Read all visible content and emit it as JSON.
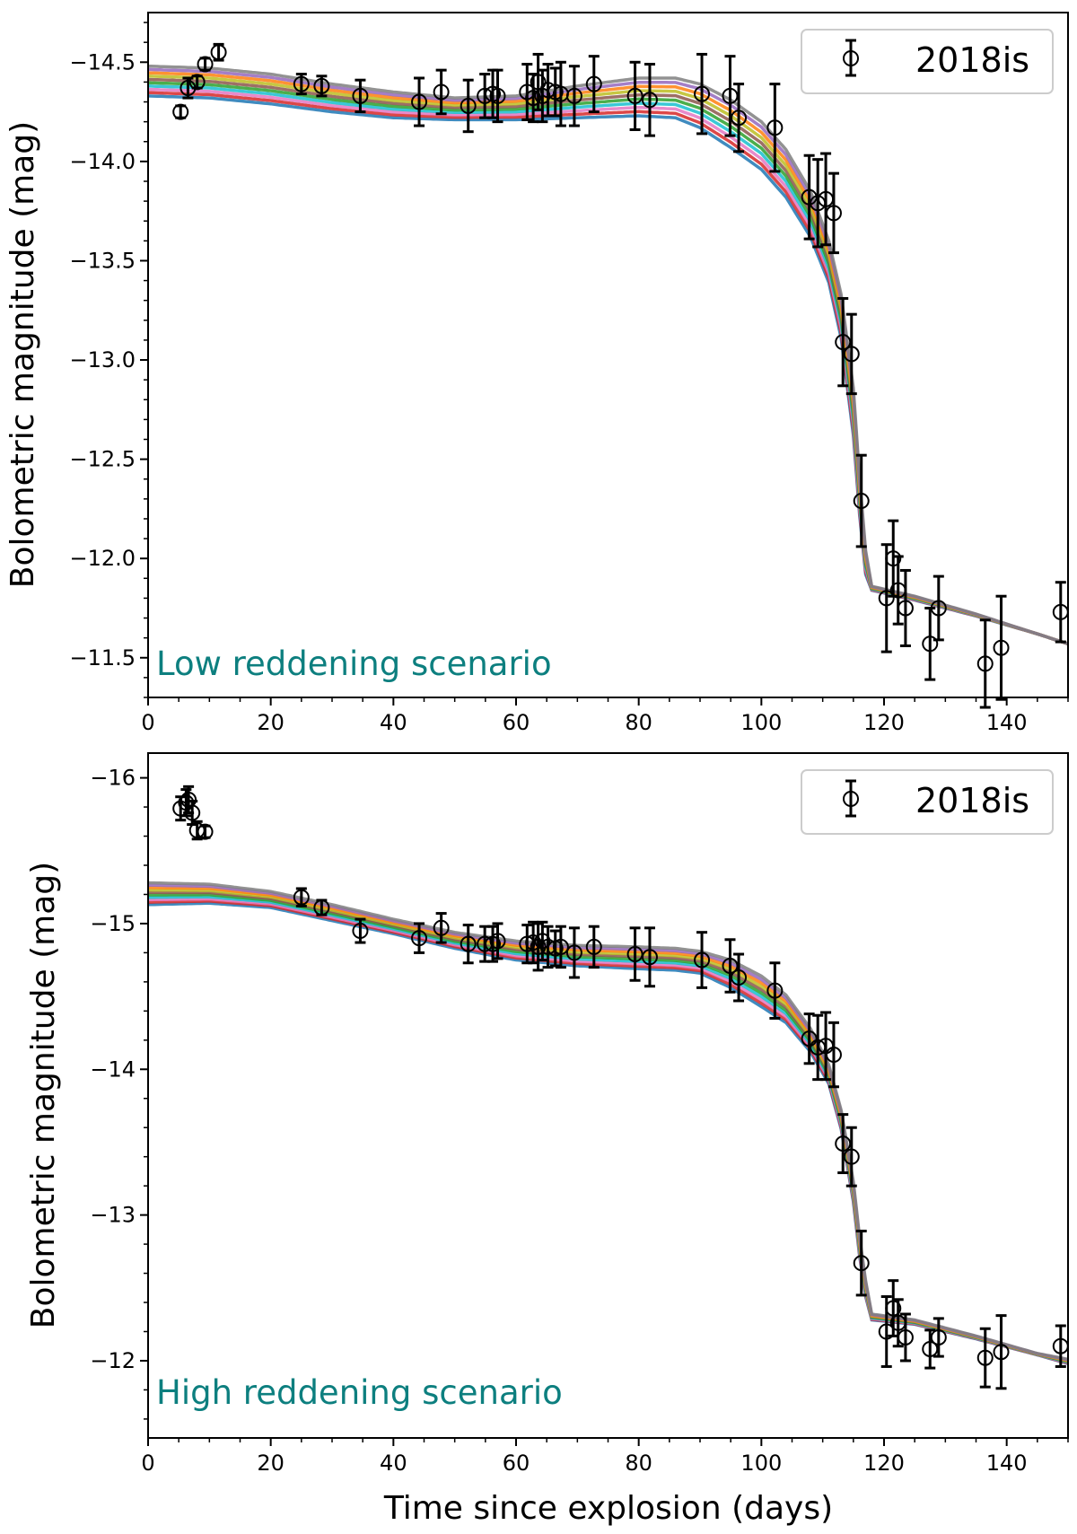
{
  "figure": {
    "xlabel": "Time since explosion (days)",
    "ylabel": "Bolometric magnitude (mag)"
  },
  "chart_data": [
    {
      "type": "line",
      "panel": "top",
      "title": "",
      "annotation": "Low reddening scenario",
      "annotation_color": "#0d7f7f",
      "xlabel": "",
      "ylabel": "Bolometric magnitude (mag)",
      "xlim": [
        0,
        150
      ],
      "ylim": [
        -11.3,
        -14.75
      ],
      "y_inverted": true,
      "xticks": [
        0,
        20,
        40,
        60,
        80,
        100,
        120,
        140
      ],
      "xtick_labels": [
        "0",
        "20",
        "40",
        "60",
        "80",
        "100",
        "120",
        "140"
      ],
      "yticks": [
        -11.5,
        -12.0,
        -12.5,
        -13.0,
        -13.5,
        -14.0,
        -14.5
      ],
      "ytick_labels": [
        "−11.5",
        "−12.0",
        "−12.5",
        "−13.0",
        "−13.5",
        "−14.0",
        "−14.5"
      ],
      "legend": {
        "label": "2018is",
        "position": "top-right"
      },
      "observations": {
        "name": "2018is",
        "t": [
          5.3,
          6.5,
          8.0,
          9.3,
          11.5,
          25,
          28.3,
          34.6,
          44.2,
          47.8,
          52.2,
          54.9,
          56.2,
          57.0,
          61.8,
          62.8,
          63.6,
          64.3,
          65.2,
          66.4,
          67.3,
          69.5,
          72.7,
          79.4,
          81.8,
          90.3,
          94.9,
          96.3,
          102.2,
          107.8,
          109.2,
          110.5,
          111.8,
          113.3,
          114.7,
          116.3,
          120.4,
          121.5,
          122.3,
          123.5,
          127.5,
          128.9,
          136.5,
          139.1,
          148.8
        ],
        "mag": [
          -14.25,
          -14.37,
          -14.4,
          -14.49,
          -14.55,
          -14.39,
          -14.38,
          -14.33,
          -14.3,
          -14.35,
          -14.28,
          -14.33,
          -14.34,
          -14.33,
          -14.35,
          -14.32,
          -14.4,
          -14.33,
          -14.36,
          -14.35,
          -14.34,
          -14.33,
          -14.39,
          -14.33,
          -14.31,
          -14.34,
          -14.33,
          -14.22,
          -14.17,
          -13.82,
          -13.79,
          -13.81,
          -13.74,
          -13.09,
          -13.03,
          -12.29,
          -11.8,
          -12.0,
          -11.84,
          -11.75,
          -11.57,
          -11.75,
          -11.47,
          -11.55,
          -11.73
        ],
        "err": [
          0.03,
          0.05,
          0.03,
          0.03,
          0.04,
          0.05,
          0.05,
          0.08,
          0.12,
          0.11,
          0.13,
          0.11,
          0.12,
          0.13,
          0.14,
          0.12,
          0.14,
          0.13,
          0.13,
          0.12,
          0.16,
          0.15,
          0.14,
          0.17,
          0.18,
          0.2,
          0.2,
          0.17,
          0.22,
          0.21,
          0.22,
          0.23,
          0.2,
          0.22,
          0.2,
          0.23,
          0.27,
          0.19,
          0.17,
          0.19,
          0.18,
          0.16,
          0.22,
          0.26,
          0.15
        ]
      },
      "model_band": {
        "description": "ensemble of model light curves",
        "t": [
          0,
          10,
          20,
          30,
          40,
          50,
          60,
          70,
          80,
          86,
          90,
          95,
          100,
          104,
          108,
          111,
          113,
          115,
          116,
          117,
          118,
          125,
          135,
          145,
          150
        ],
        "mag_low": [
          -14.33,
          -14.32,
          -14.29,
          -14.25,
          -14.22,
          -14.21,
          -14.21,
          -14.22,
          -14.23,
          -14.22,
          -14.17,
          -14.07,
          -13.96,
          -13.82,
          -13.62,
          -13.39,
          -13.11,
          -12.62,
          -12.22,
          -11.92,
          -11.84,
          -11.79,
          -11.71,
          -11.62,
          -11.57
        ],
        "mag_high": [
          -14.48,
          -14.47,
          -14.44,
          -14.39,
          -14.35,
          -14.32,
          -14.33,
          -14.38,
          -14.42,
          -14.42,
          -14.39,
          -14.31,
          -14.2,
          -14.06,
          -13.85,
          -13.6,
          -13.33,
          -12.86,
          -12.41,
          -12.04,
          -11.86,
          -11.81,
          -11.72,
          -11.62,
          -11.57
        ],
        "colors": [
          "#1f77b4",
          "#ff7f0e",
          "#2ca02c",
          "#d62728",
          "#9467bd",
          "#8c564b",
          "#e377c2",
          "#7f7f7f",
          "#bcbd22",
          "#17becf"
        ]
      }
    },
    {
      "type": "line",
      "panel": "bottom",
      "title": "",
      "annotation": "High reddening scenario",
      "annotation_color": "#0d7f7f",
      "xlabel": "Time since explosion (days)",
      "ylabel": "Bolometric magnitude (mag)",
      "xlim": [
        0,
        150
      ],
      "ylim": [
        -11.47,
        -16.17
      ],
      "y_inverted": true,
      "xticks": [
        0,
        20,
        40,
        60,
        80,
        100,
        120,
        140
      ],
      "xtick_labels": [
        "0",
        "20",
        "40",
        "60",
        "80",
        "100",
        "120",
        "140"
      ],
      "yticks": [
        -12,
        -13,
        -14,
        -15,
        -16
      ],
      "ytick_labels": [
        "−12",
        "−13",
        "−14",
        "−15",
        "−16"
      ],
      "legend": {
        "label": "2018is",
        "position": "top-right"
      },
      "observations": {
        "name": "2018is",
        "t": [
          5.3,
          6.2,
          6.6,
          7.2,
          8.0,
          9.3,
          25,
          28.3,
          34.6,
          44.2,
          47.8,
          52.2,
          54.9,
          56.2,
          57.0,
          61.8,
          62.8,
          63.6,
          64.3,
          65.2,
          66.4,
          67.3,
          69.5,
          72.7,
          79.4,
          81.8,
          90.3,
          94.9,
          96.3,
          102.2,
          107.8,
          109.2,
          110.5,
          111.8,
          113.3,
          114.7,
          116.3,
          120.4,
          121.5,
          122.3,
          123.5,
          127.5,
          128.9,
          136.5,
          139.1,
          148.8
        ],
        "mag": [
          -15.79,
          -15.83,
          -15.85,
          -15.76,
          -15.64,
          -15.63,
          -15.18,
          -15.11,
          -14.95,
          -14.9,
          -14.97,
          -14.86,
          -14.86,
          -14.86,
          -14.88,
          -14.86,
          -14.87,
          -14.84,
          -14.88,
          -14.84,
          -14.83,
          -14.84,
          -14.8,
          -14.84,
          -14.79,
          -14.77,
          -14.75,
          -14.71,
          -14.63,
          -14.54,
          -14.21,
          -14.15,
          -14.16,
          -14.1,
          -13.49,
          -13.4,
          -12.67,
          -12.2,
          -12.36,
          -12.26,
          -12.16,
          -12.08,
          -12.16,
          -12.02,
          -12.06,
          -12.1
        ],
        "err": [
          0.08,
          0.09,
          0.09,
          0.08,
          0.06,
          0.04,
          0.06,
          0.05,
          0.08,
          0.1,
          0.1,
          0.13,
          0.12,
          0.12,
          0.12,
          0.13,
          0.14,
          0.16,
          0.13,
          0.14,
          0.12,
          0.14,
          0.17,
          0.14,
          0.18,
          0.2,
          0.19,
          0.18,
          0.16,
          0.19,
          0.17,
          0.22,
          0.23,
          0.22,
          0.2,
          0.2,
          0.22,
          0.24,
          0.19,
          0.16,
          0.16,
          0.13,
          0.13,
          0.2,
          0.25,
          0.14
        ]
      },
      "model_band": {
        "description": "ensemble of model light curves",
        "t": [
          0,
          10,
          20,
          30,
          40,
          50,
          60,
          70,
          80,
          86,
          90,
          95,
          100,
          104,
          108,
          111,
          113,
          115,
          116,
          117,
          118,
          125,
          135,
          145,
          150
        ],
        "mag_low": [
          -15.13,
          -15.14,
          -15.11,
          -15.02,
          -14.93,
          -14.83,
          -14.75,
          -14.71,
          -14.69,
          -14.68,
          -14.66,
          -14.56,
          -14.43,
          -14.32,
          -14.12,
          -13.9,
          -13.59,
          -13.09,
          -12.72,
          -12.44,
          -12.28,
          -12.25,
          -12.15,
          -12.04,
          -11.98
        ],
        "mag_high": [
          -15.28,
          -15.27,
          -15.22,
          -15.13,
          -15.03,
          -14.94,
          -14.88,
          -14.85,
          -14.84,
          -14.83,
          -14.81,
          -14.75,
          -14.64,
          -14.51,
          -14.28,
          -14.03,
          -13.72,
          -13.23,
          -12.85,
          -12.55,
          -12.32,
          -12.28,
          -12.17,
          -12.05,
          -12.01
        ],
        "colors": [
          "#1f77b4",
          "#ff7f0e",
          "#2ca02c",
          "#d62728",
          "#9467bd",
          "#8c564b",
          "#e377c2",
          "#7f7f7f",
          "#bcbd22",
          "#17becf"
        ]
      }
    }
  ]
}
